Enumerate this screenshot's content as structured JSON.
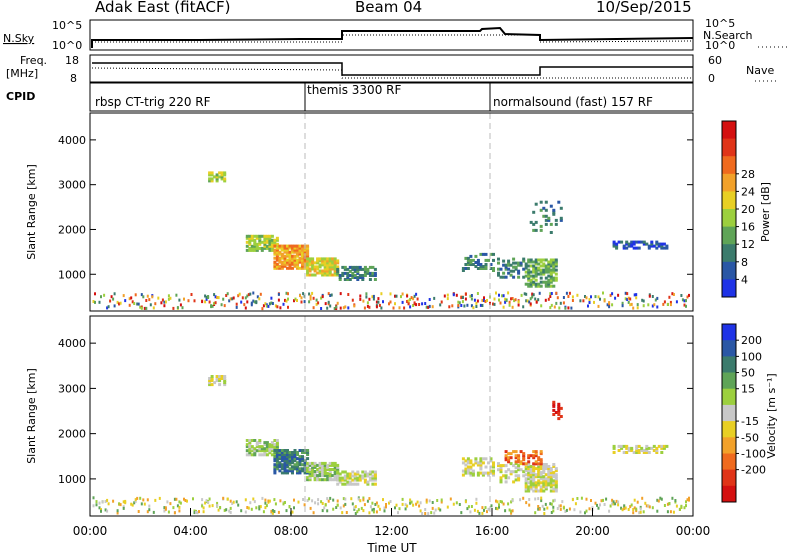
{
  "header": {
    "radar": "Adak East (fitACF)",
    "beam": "Beam 04",
    "date": "10/Sep/2015"
  },
  "noise_panel": {
    "left_label": "N.Sky",
    "right_label": "N.Search",
    "left_ticks": [
      "10^5",
      "10^0"
    ],
    "right_ticks": [
      "10^5",
      "10^0"
    ]
  },
  "freq_panel": {
    "left_label_1": "Freq.",
    "left_label_2": "[MHz]",
    "left_ticks": [
      "18",
      "8"
    ],
    "right_label": "Nave",
    "right_ticks": [
      "60",
      "0"
    ]
  },
  "cpid_panel": {
    "label": "CPID",
    "modes": [
      {
        "name": "rbsp CT-trig 220 RF",
        "start_hour": 0
      },
      {
        "name": "themis 3300 RF",
        "start_hour": 8.6
      },
      {
        "name": "normalsound (fast) 157 RF",
        "start_hour": 16
      }
    ]
  },
  "chart_data": [
    {
      "type": "heatmap",
      "title": "Power",
      "ylabel": "Slant Range [km]",
      "yticks": [
        "1000",
        "2000",
        "3000",
        "4000"
      ],
      "ylim": [
        180,
        4600
      ],
      "xlim": [
        0,
        24
      ],
      "colorbar_label": "Power [dB]",
      "colorbar_ticks": [
        "4",
        "8",
        "12",
        "16",
        "20",
        "24",
        "28"
      ],
      "colors": [
        "#1f33e6",
        "#2a57a5",
        "#3b7b6c",
        "#5fa457",
        "#9ccf3e",
        "#e8cf24",
        "#f2a12a",
        "#ef6a1e",
        "#e03418",
        "#d41010"
      ],
      "blobs": [
        {
          "t": [
            4.7,
            5.3
          ],
          "r": [
            3050,
            3250
          ],
          "c": 4,
          "d": 0.6
        },
        {
          "t": [
            6.2,
            7.4
          ],
          "r": [
            1500,
            1850
          ],
          "c": 4,
          "d": 0.7
        },
        {
          "t": [
            7.3,
            8.6
          ],
          "r": [
            1100,
            1600
          ],
          "c": 6,
          "d": 0.85
        },
        {
          "t": [
            8.6,
            9.8
          ],
          "r": [
            950,
            1350
          ],
          "c": 5,
          "d": 0.8
        },
        {
          "t": [
            9.8,
            11.3
          ],
          "r": [
            850,
            1150
          ],
          "c": 2,
          "d": 0.6
        },
        {
          "t": [
            14.8,
            16.0
          ],
          "r": [
            1050,
            1450
          ],
          "c": 2,
          "d": 0.45
        },
        {
          "t": [
            16.2,
            17.3
          ],
          "r": [
            900,
            1350
          ],
          "c": 2,
          "d": 0.4
        },
        {
          "t": [
            17.3,
            18.6
          ],
          "r": [
            700,
            1300
          ],
          "c": 3,
          "d": 0.7
        },
        {
          "t": [
            17.5,
            18.8
          ],
          "r": [
            1900,
            2600
          ],
          "c": 2,
          "d": 0.15
        },
        {
          "t": [
            20.8,
            23.0
          ],
          "r": [
            1550,
            1700
          ],
          "c": 1,
          "d": 0.5
        }
      ]
    },
    {
      "type": "heatmap",
      "title": "Velocity",
      "ylabel": "Slant Range [km]",
      "xlabel": "Time UT",
      "xticks": [
        "00:00",
        "04:00",
        "08:00",
        "12:00",
        "16:00",
        "20:00",
        "00:00"
      ],
      "yticks": [
        "1000",
        "2000",
        "3000",
        "4000"
      ],
      "ylim": [
        180,
        4600
      ],
      "xlim": [
        0,
        24
      ],
      "colorbar_label": "Velocity [m s⁻¹]",
      "colorbar_ticks": [
        "200",
        "100",
        "50",
        "15",
        "-15",
        "-50",
        "-100",
        "-200"
      ],
      "colors": [
        "#1f33e6",
        "#2a57a5",
        "#3b7b6c",
        "#5fa457",
        "#9ccf3e",
        "#c8c8c8",
        "#e8cf24",
        "#f2a12a",
        "#ef6a1e",
        "#e03418",
        "#d41010"
      ],
      "blobs": [
        {
          "t": [
            4.7,
            5.3
          ],
          "r": [
            3050,
            3250
          ],
          "c": 5,
          "d": 0.6
        },
        {
          "t": [
            6.2,
            7.4
          ],
          "r": [
            1500,
            1850
          ],
          "c": 4,
          "d": 0.7
        },
        {
          "t": [
            7.3,
            8.6
          ],
          "r": [
            1100,
            1600
          ],
          "c": 2,
          "d": 0.85
        },
        {
          "t": [
            8.6,
            9.8
          ],
          "r": [
            950,
            1350
          ],
          "c": 4,
          "d": 0.8
        },
        {
          "t": [
            9.8,
            11.3
          ],
          "r": [
            850,
            1150
          ],
          "c": 5,
          "d": 0.6
        },
        {
          "t": [
            14.8,
            16.0
          ],
          "r": [
            1050,
            1450
          ],
          "c": 5,
          "d": 0.45
        },
        {
          "t": [
            16.2,
            17.3
          ],
          "r": [
            900,
            1350
          ],
          "c": 5,
          "d": 0.4
        },
        {
          "t": [
            17.3,
            18.6
          ],
          "r": [
            700,
            1300
          ],
          "c": 5,
          "d": 0.7
        },
        {
          "t": [
            16.5,
            18.2
          ],
          "r": [
            1300,
            1600
          ],
          "c": 8,
          "d": 0.4
        },
        {
          "t": [
            18.4,
            18.8
          ],
          "r": [
            2300,
            2700
          ],
          "c": 10,
          "d": 0.35
        },
        {
          "t": [
            20.8,
            23.0
          ],
          "r": [
            1550,
            1700
          ],
          "c": 5,
          "d": 0.5
        }
      ]
    }
  ]
}
